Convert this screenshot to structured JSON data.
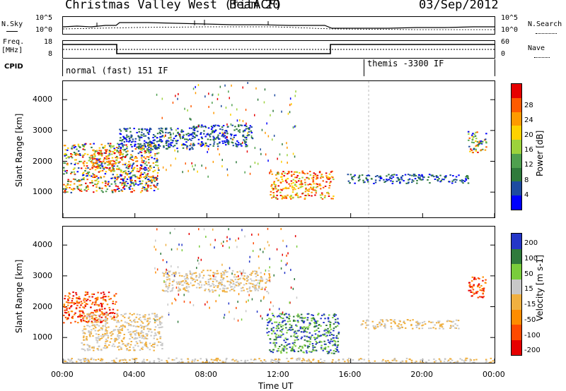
{
  "header": {
    "site": "Christmas Valley West (fitACF)",
    "beam": "Beam 20",
    "date": "03/Sep/2012"
  },
  "top_panels": {
    "nsky_label": "N.Sky",
    "nsearch_label": "N.Search",
    "noise_ticks_left": [
      "10^5",
      "10^0"
    ],
    "noise_ticks_right": [
      "10^5",
      "10^0"
    ],
    "freq_label_1": "Freq.",
    "freq_label_2": "[MHz]",
    "freq_ticks": [
      "18",
      "8"
    ],
    "nave_label": "Nave",
    "nave_ticks": [
      "60",
      "0"
    ],
    "cpid_label": "CPID",
    "cpid_segments": [
      "normal (fast) 151 IF",
      "themis -3300 IF"
    ]
  },
  "colors": {
    "power": [
      "#0000ff",
      "#1e4ba0",
      "#2f7a3c",
      "#4fa04f",
      "#9cd23c",
      "#ffd200",
      "#ff9a00",
      "#ff5a00",
      "#e60000"
    ],
    "velocity": [
      "#2436c8",
      "#2f7a3c",
      "#7acc3c",
      "#c8c8c8",
      "#f0b040",
      "#ff8c00",
      "#ff4a00",
      "#e60000"
    ]
  },
  "chart_data": [
    {
      "type": "heatmap",
      "title": "Power",
      "ylabel": "Slant Range [km]",
      "xlabel": "",
      "ylim": [
        180,
        4600
      ],
      "yticks": [
        "1000",
        "2000",
        "3000",
        "4000"
      ],
      "xticks": [
        "00:00",
        "04:00",
        "08:00",
        "12:00",
        "16:00",
        "20:00",
        "00:00"
      ],
      "colorbar_label": "Power [dB]",
      "colorbar_ticks": [
        "4",
        "8",
        "12",
        "16",
        "20",
        "24",
        "28"
      ],
      "regions": [
        {
          "t0": 0.0,
          "t1": 5.3,
          "r0": 1000,
          "r1": 2600,
          "level": "mixed"
        },
        {
          "t0": 1.5,
          "t1": 3.3,
          "r0": 1700,
          "r1": 2400,
          "level": "high"
        },
        {
          "t0": 3.0,
          "t1": 7.3,
          "r0": 2400,
          "r1": 3100,
          "level": "low"
        },
        {
          "t0": 7.0,
          "t1": 10.5,
          "r0": 2500,
          "r1": 3200,
          "level": "low"
        },
        {
          "t0": 11.5,
          "t1": 15.0,
          "r0": 800,
          "r1": 1700,
          "level": "high"
        },
        {
          "t0": 15.8,
          "t1": 22.5,
          "r0": 1300,
          "r1": 1600,
          "level": "low"
        },
        {
          "t0": 22.5,
          "t1": 23.5,
          "r0": 2300,
          "r1": 3000,
          "level": "mixed"
        }
      ]
    },
    {
      "type": "heatmap",
      "title": "Velocity",
      "ylabel": "Slant Range [km]",
      "xlabel": "Time UT",
      "ylim": [
        180,
        4600
      ],
      "yticks": [
        "1000",
        "2000",
        "3000",
        "4000"
      ],
      "xticks": [
        "00:00",
        "04:00",
        "08:00",
        "12:00",
        "16:00",
        "20:00",
        "00:00"
      ],
      "colorbar_label": "Velocity [m s-1]",
      "colorbar_ticks": [
        "200",
        "100",
        "50",
        "15",
        "-15",
        "-50",
        "-100",
        "-200"
      ],
      "regions": [
        {
          "t0": 0.0,
          "t1": 3.0,
          "r0": 1500,
          "r1": 2500,
          "level": "negative"
        },
        {
          "t0": 1.0,
          "t1": 5.5,
          "r0": 600,
          "r1": 1800,
          "level": "ground"
        },
        {
          "t0": 5.5,
          "t1": 11.5,
          "r0": 2500,
          "r1": 3200,
          "level": "ground"
        },
        {
          "t0": 11.3,
          "t1": 15.3,
          "r0": 500,
          "r1": 1800,
          "level": "positive"
        },
        {
          "t0": 16.5,
          "t1": 22.0,
          "r0": 1300,
          "r1": 1600,
          "level": "ground"
        },
        {
          "t0": 22.5,
          "t1": 23.5,
          "r0": 2300,
          "r1": 3000,
          "level": "negative"
        },
        {
          "t0": 0.0,
          "t1": 24.0,
          "r0": 180,
          "r1": 350,
          "level": "ground"
        }
      ]
    }
  ]
}
